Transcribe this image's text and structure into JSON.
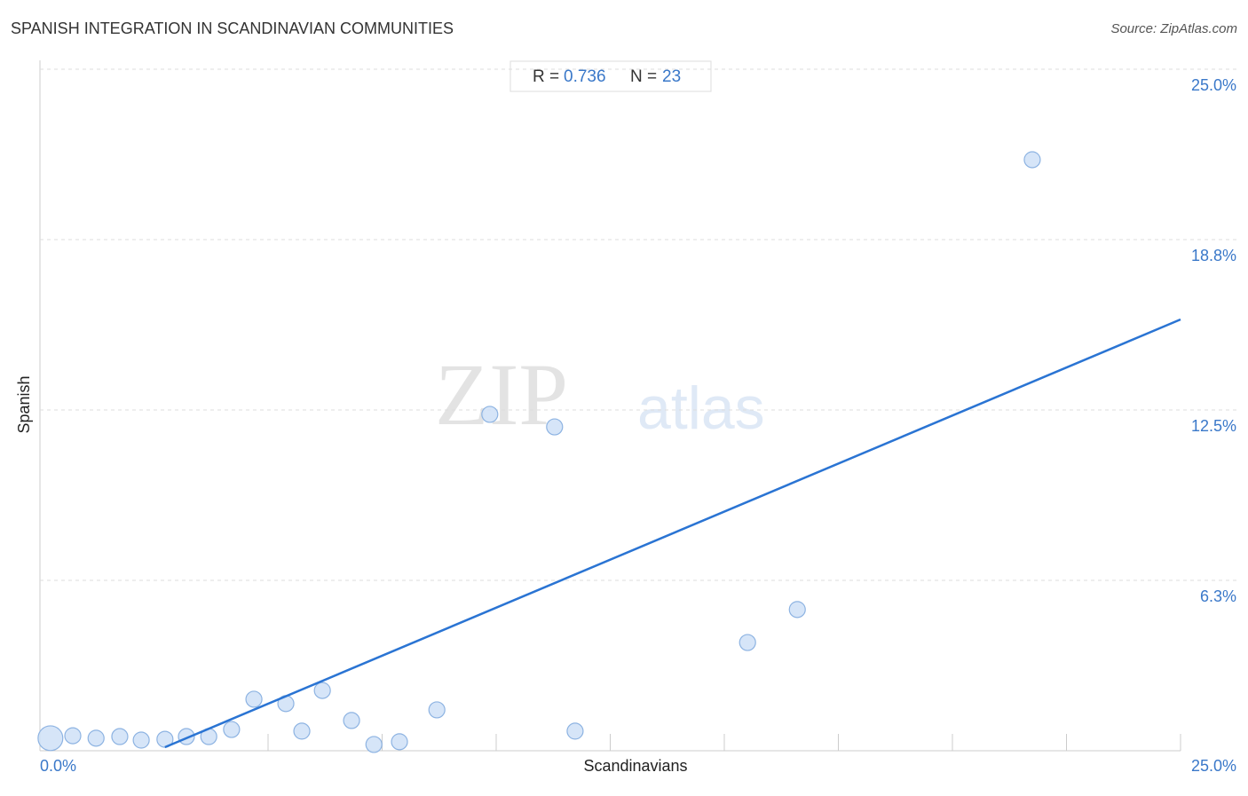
{
  "chart_data": {
    "type": "scatter",
    "title": "SPANISH INTEGRATION IN SCANDINAVIAN COMMUNITIES",
    "source": "Source: ZipAtlas.com",
    "x_label": "Scandinavians",
    "y_label": "Spanish",
    "watermark": [
      "ZIP",
      "atlas"
    ],
    "stats": [
      {
        "label": "R =",
        "value": 0.736
      },
      {
        "label": "N =",
        "value": 23
      }
    ],
    "x": [
      0.23,
      0.72,
      1.23,
      1.75,
      2.22,
      2.74,
      3.21,
      3.7,
      4.2,
      4.69,
      5.39,
      5.74,
      6.19,
      6.83,
      7.32,
      7.88,
      8.7,
      9.86,
      11.28,
      11.73,
      15.51,
      16.6,
      21.75
    ],
    "values": [
      0.46,
      0.55,
      0.46,
      0.52,
      0.39,
      0.42,
      0.52,
      0.52,
      0.78,
      1.89,
      1.73,
      0.72,
      2.21,
      1.11,
      0.23,
      0.33,
      1.5,
      12.34,
      11.88,
      0.72,
      3.97,
      5.18,
      21.68
    ],
    "sizes": [
      2.4,
      1,
      1,
      1,
      1,
      1,
      1,
      1,
      1,
      1,
      1,
      1,
      1,
      1,
      1,
      1,
      1,
      1,
      1,
      1,
      1,
      1,
      1
    ],
    "color": "#cfe0f7",
    "edge_color": "#8db3e2",
    "trendline": {
      "x": [
        2.74,
        25
      ],
      "y": [
        0.13,
        15.82
      ],
      "color": "#2a74d3"
    },
    "xlim": [
      0,
      25
    ],
    "ylim": [
      0,
      25
    ],
    "xticks": [
      {
        "value": 0,
        "label": "0.0%"
      },
      {
        "value": 25,
        "label": "25.0%"
      }
    ],
    "xminorticks": [
      5,
      7.5,
      10,
      12.5,
      15,
      17.5,
      20,
      22.5,
      25
    ],
    "yticks": [
      {
        "value": 6.25,
        "label": "6.3%"
      },
      {
        "value": 12.5,
        "label": "12.5%"
      },
      {
        "value": 18.75,
        "label": "18.8%"
      },
      {
        "value": 25,
        "label": "25.0%"
      }
    ],
    "grid": true
  }
}
